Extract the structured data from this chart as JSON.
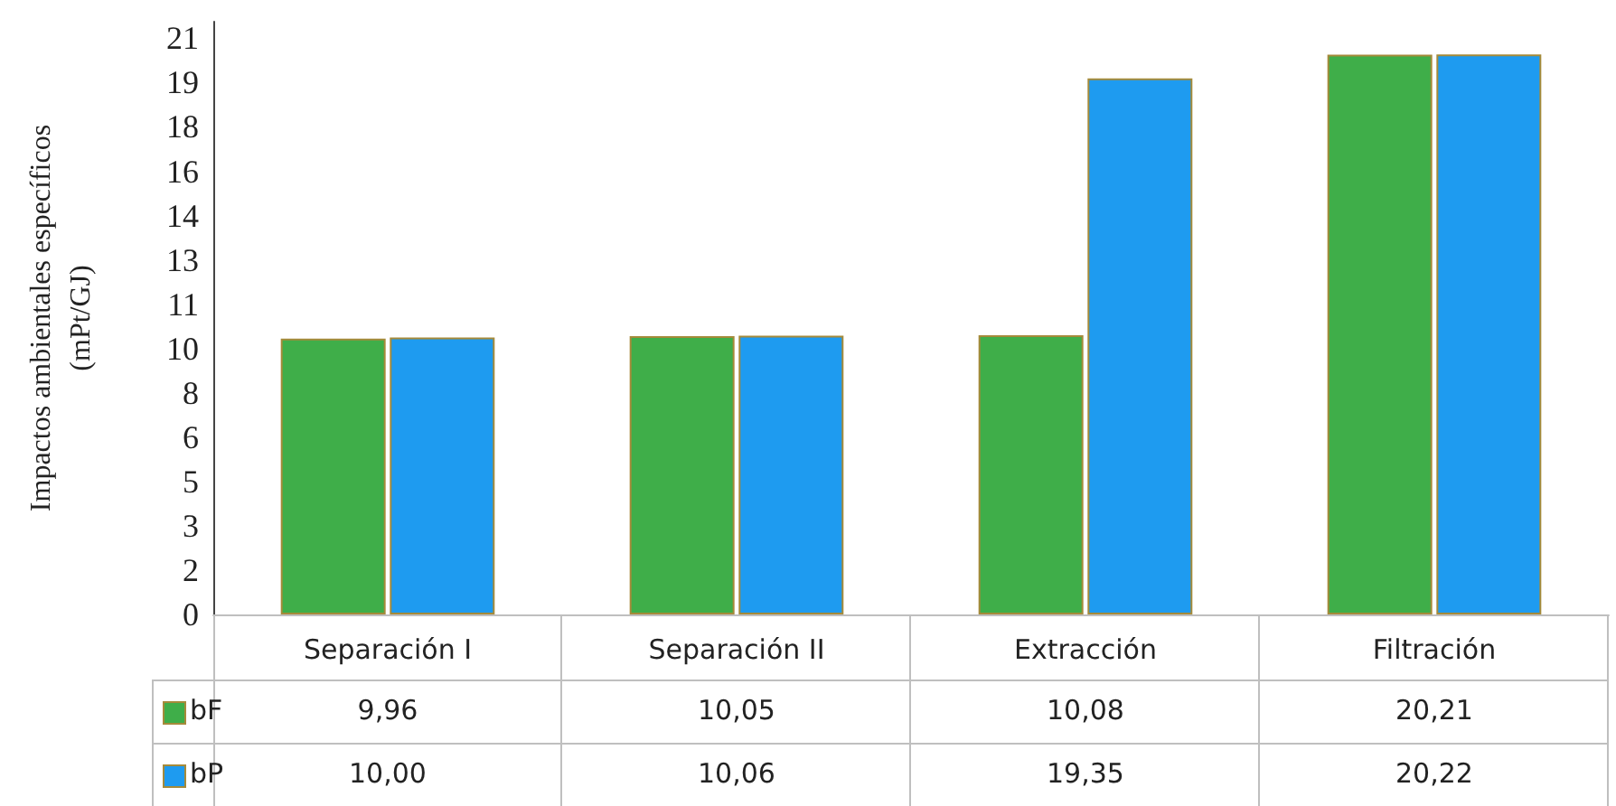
{
  "chart_data": {
    "type": "bar",
    "ylabel": "Impactos ambientales específicos\n(mPt/GJ)",
    "categories": [
      "Separación I",
      "Separación II",
      "Extracción",
      "Filtración"
    ],
    "series": [
      {
        "name": "bF",
        "color": "#3fae49",
        "values": [
          9.96,
          10.05,
          10.08,
          20.21
        ],
        "value_labels": [
          "9,96",
          "10,05",
          "10,08",
          "20,21"
        ]
      },
      {
        "name": "bP",
        "color": "#1e9bf0",
        "values": [
          10.0,
          10.06,
          19.35,
          20.22
        ],
        "value_labels": [
          "10,00",
          "10,06",
          "19,35",
          "20,22"
        ]
      }
    ],
    "ylim": [
      0,
      21.4
    ],
    "yticks": [
      0,
      {
        "value": 1.6,
        "label": "2"
      },
      {
        "value": 3.2,
        "label": "3"
      },
      {
        "value": 4.8,
        "label": "5"
      },
      {
        "value": 6.4,
        "label": "6"
      },
      8,
      {
        "value": 9.6,
        "label": "10"
      },
      {
        "value": 11.2,
        "label": "11"
      },
      {
        "value": 12.8,
        "label": "13"
      },
      {
        "value": 14.4,
        "label": "14"
      },
      16,
      {
        "value": 17.6,
        "label": "18"
      },
      {
        "value": 19.2,
        "label": "19"
      },
      {
        "value": 20.8,
        "label": "21"
      }
    ],
    "grid": false,
    "legend": "bottom"
  }
}
